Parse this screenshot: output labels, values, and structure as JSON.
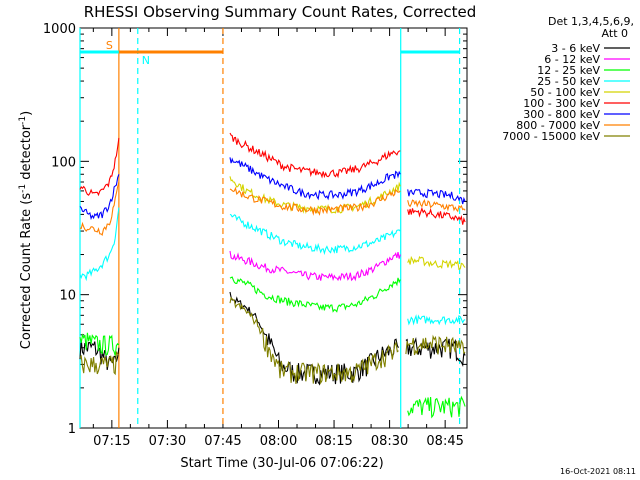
{
  "chart_data": {
    "type": "line",
    "title": "RHESSI Observing Summary Count Rates, Corrected",
    "xlabel": "Start Time (30-Jul-06 07:06:22)",
    "ylabel_main": "Corrected Count Rate (s",
    "ylabel_sup1": "-1",
    "ylabel_mid": " detector",
    "ylabel_sup2": "-1",
    "ylabel_end": ")",
    "y_scale": "log",
    "ylim": [
      1,
      1000
    ],
    "xlim_minutes": [
      0,
      104.5
    ],
    "x_ticks": [
      {
        "label": "07:15",
        "t": 8.6
      },
      {
        "label": "07:30",
        "t": 23.6
      },
      {
        "label": "07:45",
        "t": 38.6
      },
      {
        "label": "08:00",
        "t": 53.6
      },
      {
        "label": "08:15",
        "t": 68.6
      },
      {
        "label": "08:30",
        "t": 83.6
      },
      {
        "label": "08:45",
        "t": 98.6
      }
    ],
    "y_ticks": [
      {
        "label": "1",
        "v": 1
      },
      {
        "label": "10",
        "v": 10
      },
      {
        "label": "100",
        "v": 100
      },
      {
        "label": "1000",
        "v": 1000
      }
    ],
    "legend": {
      "header_line1": "Det 1,3,4,5,6,9,",
      "header_line2": "Att 0",
      "position": "right"
    },
    "series": [
      {
        "name": "3 - 6 keV",
        "color": "#000000",
        "segments": [
          {
            "t": [
              0,
              2,
              4,
              6,
              8,
              9.5,
              10.5
            ],
            "v": [
              4,
              4,
              4,
              3.5,
              3,
              3,
              4
            ]
          },
          {
            "t": [
              40.5,
              42,
              45,
              48,
              50,
              52,
              54,
              58,
              62,
              66,
              70,
              74,
              78,
              81,
              84,
              86
            ],
            "v": [
              10,
              9,
              8,
              6.5,
              5,
              4,
              3,
              2.6,
              2.6,
              2.6,
              2.6,
              2.6,
              3,
              3.5,
              3.8,
              4
            ]
          },
          {
            "t": [
              88,
              92,
              96,
              101,
              104
            ],
            "v": [
              4,
              4,
              4,
              4,
              3.5
            ]
          }
        ]
      },
      {
        "name": "6 - 12 keV",
        "color": "#ff00ff",
        "segments": [
          {
            "t": [
              40.5,
              42,
              45,
              50,
              55,
              60,
              65,
              70,
              75,
              80,
              84,
              86.5
            ],
            "v": [
              20,
              19,
              18,
              16,
              15,
              14,
              13.5,
              13.5,
              14,
              16,
              19,
              20
            ]
          }
        ]
      },
      {
        "name": "12 - 25 keV",
        "color": "#00ff00",
        "segments": [
          {
            "t": [
              0,
              2,
              4,
              6,
              8,
              9.5,
              10.5
            ],
            "v": [
              4.5,
              4.5,
              4.3,
              4.2,
              4.2,
              4.2,
              4.2
            ]
          },
          {
            "t": [
              40.5,
              42,
              45,
              50,
              55,
              60,
              65,
              70,
              75,
              80,
              84,
              86.5
            ],
            "v": [
              14,
              13,
              12,
              10,
              9,
              8.5,
              8,
              8,
              8.5,
              10,
              12,
              13
            ]
          },
          {
            "t": [
              88.5,
              92,
              96,
              101,
              104
            ],
            "v": [
              1.45,
              1.45,
              1.45,
              1.45,
              1.45
            ]
          }
        ]
      },
      {
        "name": "25 - 50 keV",
        "color": "#00ffff",
        "segments": [
          {
            "t": [
              0,
              2,
              4,
              6,
              8,
              9.5,
              10.5
            ],
            "v": [
              14,
              14,
              15,
              17,
              20,
              27,
              45
            ]
          },
          {
            "t": [
              40.5,
              42,
              45,
              50,
              55,
              60,
              65,
              70,
              75,
              80,
              84,
              86.5
            ],
            "v": [
              40,
              37,
              34,
              29,
              25,
              23,
              22,
              22,
              23,
              25,
              28,
              30
            ]
          },
          {
            "t": [
              88.5,
              92,
              96,
              101,
              104
            ],
            "v": [
              6.5,
              6.5,
              6.5,
              6.5,
              6.5
            ]
          }
        ]
      },
      {
        "name": "50 - 100 keV",
        "color": "#d4d400",
        "segments": [
          {
            "t": [
              40.5,
              42,
              45,
              50,
              55,
              60,
              65,
              70,
              75,
              80,
              84,
              86.5
            ],
            "v": [
              75,
              70,
              60,
              52,
              47,
              45,
              44,
              44,
              46,
              52,
              60,
              65
            ]
          },
          {
            "t": [
              88.5,
              92,
              96,
              101,
              104
            ],
            "v": [
              18,
              18,
              17,
              17,
              16
            ]
          }
        ]
      },
      {
        "name": "100 - 300 keV",
        "color": "#ff0000",
        "segments": [
          {
            "t": [
              0,
              2,
              4,
              6,
              8,
              9.5,
              10.5
            ],
            "v": [
              65,
              60,
              55,
              60,
              70,
              100,
              150
            ]
          },
          {
            "t": [
              40.5,
              42,
              45,
              50,
              55,
              60,
              65,
              70,
              75,
              80,
              84,
              86.5
            ],
            "v": [
              155,
              145,
              130,
              110,
              92,
              85,
              82,
              82,
              88,
              100,
              115,
              120
            ]
          },
          {
            "t": [
              88.5,
              92,
              96,
              101,
              104
            ],
            "v": [
              42,
              42,
              40,
              38,
              35
            ]
          }
        ]
      },
      {
        "name": "300 - 800 keV",
        "color": "#0000ff",
        "segments": [
          {
            "t": [
              0,
              2,
              4,
              6,
              8,
              9.5,
              10.5
            ],
            "v": [
              45,
              40,
              38,
              40,
              48,
              65,
              80
            ]
          },
          {
            "t": [
              40.5,
              42,
              45,
              50,
              55,
              60,
              65,
              70,
              75,
              80,
              84,
              86.5
            ],
            "v": [
              105,
              100,
              90,
              75,
              65,
              58,
              56,
              56,
              60,
              68,
              78,
              80
            ]
          },
          {
            "t": [
              88.5,
              92,
              96,
              101,
              104
            ],
            "v": [
              58,
              58,
              57,
              55,
              50
            ]
          }
        ]
      },
      {
        "name": "800 - 7000 keV",
        "color": "#ff8000",
        "segments": [
          {
            "t": [
              0,
              2,
              4,
              6,
              8,
              9.5,
              10.5
            ],
            "v": [
              33,
              32,
              31,
              30,
              35,
              50,
              70
            ]
          },
          {
            "t": [
              40.5,
              42,
              45,
              50,
              55,
              60,
              65,
              70,
              75,
              80,
              84,
              86.5
            ],
            "v": [
              65,
              60,
              55,
              50,
              46,
              44,
              43,
              44,
              45,
              50,
              57,
              60
            ]
          },
          {
            "t": [
              88.5,
              92,
              96,
              101,
              104
            ],
            "v": [
              48,
              48,
              47,
              45,
              43
            ]
          }
        ]
      },
      {
        "name": "7000 - 15000 keV",
        "color": "#808000",
        "segments": [
          {
            "t": [
              0,
              2,
              4,
              6,
              8,
              9.5,
              10.5
            ],
            "v": [
              3,
              3,
              3,
              3,
              3,
              3,
              3.5
            ]
          },
          {
            "t": [
              40.5,
              42,
              45,
              48,
              50,
              52,
              54,
              58,
              62,
              66,
              70,
              74,
              78,
              81,
              84,
              86
            ],
            "v": [
              9,
              8.5,
              7.5,
              6,
              4.5,
              3.5,
              2.7,
              2.6,
              2.6,
              2.6,
              2.6,
              2.6,
              3,
              3.4,
              3.6,
              3.8
            ]
          },
          {
            "t": [
              88,
              92,
              96,
              101,
              104
            ],
            "v": [
              4.3,
              4.3,
              4.3,
              4.1,
              3.7
            ]
          }
        ]
      }
    ],
    "annotations": {
      "marker_s": "S",
      "marker_n": "N",
      "saa_bar": {
        "t_start": 10.5,
        "t_end": 38.6,
        "v": 660
      },
      "night_bar_1": {
        "t_start": 0,
        "t_end": 10.5,
        "v": 660
      },
      "night_bar_2": {
        "t_start": 86.6,
        "t_end": 102.5,
        "v": 660
      },
      "vlines": [
        {
          "t": 0,
          "color": "#00ffff",
          "style": "solid"
        },
        {
          "t": 10.5,
          "color": "#ff8000",
          "style": "solid"
        },
        {
          "t": 15.6,
          "color": "#00ffff",
          "style": "dashed"
        },
        {
          "t": 38.6,
          "color": "#ff8000",
          "style": "dashed"
        },
        {
          "t": 86.6,
          "color": "#00ffff",
          "style": "solid"
        },
        {
          "t": 102.5,
          "color": "#00ffff",
          "style": "dashed"
        }
      ]
    },
    "timestamp": "16-Oct-2021 08:11"
  }
}
